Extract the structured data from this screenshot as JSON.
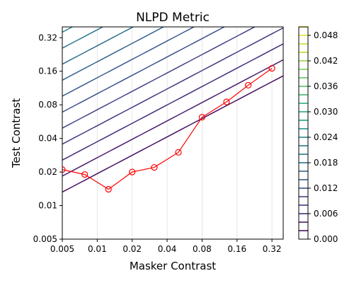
{
  "chart_data": {
    "type": "contour",
    "title": "NLPD Metric",
    "xlabel": "Masker Contrast",
    "ylabel": "Test Contrast",
    "x_scale": "log2",
    "y_scale": "log2",
    "xlim": [
      0.005,
      0.4
    ],
    "ylim": [
      0.005,
      0.4
    ],
    "x_ticks": [
      0.005,
      0.01,
      0.02,
      0.04,
      0.08,
      0.16,
      0.32
    ],
    "x_tick_labels": [
      "0.005",
      "0.01",
      "0.02",
      "0.04",
      "0.08",
      "0.16",
      "0.32"
    ],
    "y_ticks": [
      0.005,
      0.01,
      0.02,
      0.04,
      0.08,
      0.16,
      0.32
    ],
    "y_tick_labels": [
      "0.005",
      "0.01",
      "0.02",
      "0.04",
      "0.08",
      "0.16",
      "0.32"
    ],
    "contour_levels": [
      0.002,
      0.004,
      0.006,
      0.008,
      0.01,
      0.012,
      0.014,
      0.016,
      0.018,
      0.02,
      0.022,
      0.024,
      0.026,
      0.028,
      0.03,
      0.032,
      0.034,
      0.036,
      0.038,
      0.04,
      0.042,
      0.044,
      0.046,
      0.048,
      0.05
    ],
    "colorbar": {
      "range": [
        0.0,
        0.05
      ],
      "tick_values": [
        0.0,
        0.006,
        0.012,
        0.018,
        0.024,
        0.03,
        0.036,
        0.042,
        0.048
      ],
      "tick_labels": [
        "0.000",
        "0.006",
        "0.012",
        "0.018",
        "0.024",
        "0.030",
        "0.036",
        "0.042",
        "0.048"
      ],
      "colormap": "viridis"
    },
    "grid": "vertical",
    "series": [
      {
        "marker": "open-circle",
        "color": "#ff0000",
        "x": [
          0.005,
          0.0078,
          0.0125,
          0.02,
          0.031,
          0.05,
          0.08,
          0.13,
          0.2,
          0.32
        ],
        "y": [
          0.021,
          0.019,
          0.014,
          0.02,
          0.022,
          0.03,
          0.062,
          0.085,
          0.12,
          0.17
        ]
      }
    ]
  }
}
